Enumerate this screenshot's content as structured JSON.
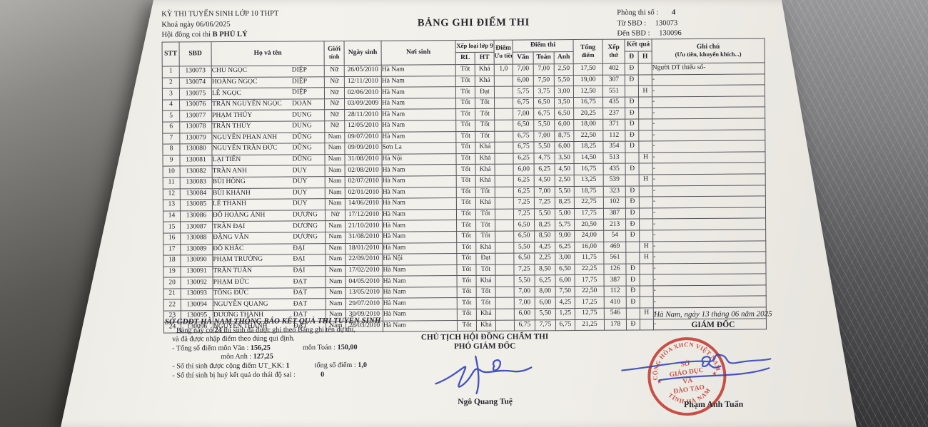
{
  "header": {
    "exam_title": "KỲ THI TUYỂN SINH LỚP 10 THPT",
    "session_label": "Khoá ngày",
    "session_date": "06/06/2025",
    "council_label": "Hội đồng coi thi",
    "council_value": "B PHỦ LÝ",
    "doc_title": "BẢNG GHI ĐIỂM THI",
    "room_label": "Phòng thi số :",
    "room_value": "4",
    "from_label": "Từ SBD :",
    "from_value": "130073",
    "to_label": "Đến SBD :",
    "to_value": "130096"
  },
  "table": {
    "headers": {
      "stt": "STT",
      "sbd": "SBD",
      "name": "Họ và tên",
      "gender_l1": "Giới",
      "gender_l2": "tính",
      "dob": "Ngày sinh",
      "pob": "Nơi sinh",
      "grade9": "Xếp loại lớp 9",
      "rl": "RL",
      "ht": "HT",
      "priority_l1": "Điểm",
      "priority_l2": "Ưu tiên",
      "exam": "Điểm thi",
      "van": "Văn",
      "toan": "Toán",
      "anh": "Anh",
      "total_l1": "Tổng",
      "total_l2": "điểm",
      "rank_l1": "Xếp",
      "rank_l2": "thứ",
      "result": "Kết quả",
      "d": "Đ",
      "h": "H",
      "note_l1": "Ghi chú",
      "note_l2": "(Ưu tiên, khuyến khích...)"
    },
    "rows": [
      [
        "1",
        "130073",
        "CHU NGỌC",
        "DIỆP",
        "Nữ",
        "26/05/2010",
        "Hà Nam",
        "Tốt",
        "Khá",
        "1,0",
        "7,00",
        "7,00",
        "2,50",
        "17,50",
        "402",
        "Đ",
        "",
        "Người DT thiểu số-"
      ],
      [
        "2",
        "130074",
        "HOÀNG NGỌC",
        "DIỆP",
        "Nữ",
        "12/11/2010",
        "Hà Nam",
        "Tốt",
        "Khá",
        "",
        "6,00",
        "7,50",
        "5,50",
        "19,00",
        "307",
        "Đ",
        "",
        "-"
      ],
      [
        "3",
        "130075",
        "LÊ NGỌC",
        "DIỆP",
        "Nữ",
        "02/06/2010",
        "Hà Nam",
        "Tốt",
        "Đạt",
        "",
        "5,75",
        "3,75",
        "3,00",
        "12,50",
        "551",
        "",
        "H",
        "-"
      ],
      [
        "4",
        "130076",
        "TRẦN NGUYỄN NGỌC",
        "DOAN",
        "Nữ",
        "03/09/2009",
        "Hà Nam",
        "Tốt",
        "Tốt",
        "",
        "6,75",
        "6,50",
        "3,50",
        "16,75",
        "435",
        "Đ",
        "",
        "-"
      ],
      [
        "5",
        "130077",
        "PHẠM THÚY",
        "DUNG",
        "Nữ",
        "28/11/2010",
        "Hà Nam",
        "Tốt",
        "Tốt",
        "",
        "7,00",
        "6,75",
        "6,50",
        "20,25",
        "237",
        "Đ",
        "",
        "-"
      ],
      [
        "6",
        "130078",
        "TRẦN THÚY",
        "DUNG",
        "Nữ",
        "12/05/2010",
        "Hà Nam",
        "Tốt",
        "Tốt",
        "",
        "6,50",
        "5,50",
        "6,00",
        "18,00",
        "371",
        "Đ",
        "",
        "-"
      ],
      [
        "7",
        "130079",
        "NGUYỄN PHAN ANH",
        "DŨNG",
        "Nam",
        "09/07/2010",
        "Hà Nam",
        "Tốt",
        "Tốt",
        "",
        "6,75",
        "7,00",
        "8,75",
        "22,50",
        "112",
        "Đ",
        "",
        "-"
      ],
      [
        "8",
        "130080",
        "NGUYỄN TRẦN ĐỨC",
        "DŨNG",
        "Nam",
        "09/09/2010",
        "Sơn La",
        "Tốt",
        "Khá",
        "",
        "6,75",
        "5,50",
        "6,00",
        "18,25",
        "354",
        "Đ",
        "",
        "-"
      ],
      [
        "9",
        "130081",
        "LẠI TIẾN",
        "DŨNG",
        "Nam",
        "31/08/2010",
        "Hà Nội",
        "Tốt",
        "Khá",
        "",
        "6,25",
        "4,75",
        "3,50",
        "14,50",
        "513",
        "",
        "H",
        "-"
      ],
      [
        "10",
        "130082",
        "TRẦN ANH",
        "DUY",
        "Nam",
        "02/08/2010",
        "Hà Nam",
        "Tốt",
        "Khá",
        "",
        "6,00",
        "6,25",
        "4,50",
        "16,75",
        "435",
        "Đ",
        "",
        "-"
      ],
      [
        "11",
        "130083",
        "BÙI HỒNG",
        "DUY",
        "Nam",
        "02/07/2010",
        "Hà Nam",
        "Tốt",
        "Khá",
        "",
        "6,25",
        "4,50",
        "2,50",
        "13,25",
        "539",
        "",
        "H",
        "-"
      ],
      [
        "12",
        "130084",
        "BÙI KHÁNH",
        "DUY",
        "Nam",
        "02/01/2010",
        "Hà Nam",
        "Tốt",
        "Tốt",
        "",
        "6,25",
        "7,00",
        "5,50",
        "18,75",
        "323",
        "Đ",
        "",
        "-"
      ],
      [
        "13",
        "130085",
        "LÊ THÀNH",
        "DUY",
        "Nam",
        "14/06/2010",
        "Hà Nam",
        "Tốt",
        "Khá",
        "",
        "7,25",
        "7,25",
        "8,25",
        "22,75",
        "102",
        "Đ",
        "",
        "-"
      ],
      [
        "14",
        "130086",
        "ĐỖ HOÀNG ÁNH",
        "DƯƠNG",
        "Nữ",
        "17/12/2010",
        "Hà Nam",
        "Tốt",
        "Tốt",
        "",
        "7,25",
        "5,50",
        "5,00",
        "17,75",
        "387",
        "Đ",
        "",
        "-"
      ],
      [
        "15",
        "130087",
        "TRẦN ĐẠI",
        "DƯƠNG",
        "Nam",
        "21/10/2010",
        "Hà Nam",
        "Tốt",
        "Tốt",
        "",
        "6,50",
        "8,25",
        "5,75",
        "20,50",
        "213",
        "Đ",
        "",
        "-"
      ],
      [
        "16",
        "130088",
        "ĐẶNG VĂN",
        "DƯƠNG",
        "Nam",
        "31/08/2010",
        "Hà Nam",
        "Tốt",
        "Tốt",
        "",
        "6,50",
        "8,50",
        "9,00",
        "24,00",
        "54",
        "Đ",
        "",
        "-"
      ],
      [
        "17",
        "130089",
        "ĐỖ KHẮC",
        "ĐẠI",
        "Nam",
        "18/01/2010",
        "Hà Nam",
        "Tốt",
        "Khá",
        "",
        "5,50",
        "4,25",
        "6,25",
        "16,00",
        "469",
        "",
        "H",
        "-"
      ],
      [
        "18",
        "130090",
        "PHẠM TRƯỜNG",
        "ĐẠI",
        "Nam",
        "22/09/2010",
        "Hà Nội",
        "Tốt",
        "Đạt",
        "",
        "6,50",
        "2,25",
        "3,00",
        "11,75",
        "561",
        "",
        "H",
        "-"
      ],
      [
        "19",
        "130091",
        "TRẦN TUẤN",
        "ĐẠI",
        "Nam",
        "17/02/2010",
        "Hà Nam",
        "Tốt",
        "Tốt",
        "",
        "7,25",
        "8,50",
        "6,50",
        "22,25",
        "126",
        "Đ",
        "",
        "-"
      ],
      [
        "20",
        "130092",
        "PHẠM ĐỨC",
        "ĐẠT",
        "Nam",
        "04/05/2010",
        "Hà Nam",
        "Tốt",
        "Khá",
        "",
        "5,50",
        "6,25",
        "6,00",
        "17,75",
        "387",
        "Đ",
        "",
        "-"
      ],
      [
        "21",
        "130093",
        "TỐNG ĐỨC",
        "ĐẠT",
        "Nam",
        "13/05/2010",
        "Hà Nam",
        "Tốt",
        "Tốt",
        "",
        "7,00",
        "8,00",
        "7,50",
        "22,50",
        "112",
        "Đ",
        "",
        "-"
      ],
      [
        "22",
        "130094",
        "NGUYỄN QUANG",
        "ĐẠT",
        "Nam",
        "29/07/2010",
        "Hà Nam",
        "Tốt",
        "Tốt",
        "",
        "7,00",
        "6,00",
        "4,25",
        "17,25",
        "410",
        "Đ",
        "",
        "-"
      ],
      [
        "23",
        "130095",
        "DƯƠNG THÀNH",
        "ĐẠT",
        "Nam",
        "30/09/2010",
        "Hà Nam",
        "Tốt",
        "Khá",
        "",
        "6,00",
        "5,50",
        "1,25",
        "12,75",
        "546",
        "",
        "H",
        "-"
      ],
      [
        "24",
        "130096",
        "NGUYỄN THÀNH",
        "ĐẠT",
        "Nam",
        "28/03/2010",
        "Hà Nam",
        "Tốt",
        "Khá",
        "",
        "6,75",
        "7,75",
        "6,75",
        "21,25",
        "178",
        "Đ",
        "",
        "-"
      ]
    ]
  },
  "footer": {
    "notice_title": "SỞ GDĐT HÀ NAM THÔNG BÁO KẾT QUẢ THI TUYỂN SINH",
    "line1_pre": "Bảng này có",
    "line1_count": "24",
    "line1_post": "thí sinh đã được ghi theo Bảng ghi tên dự thi,",
    "line2": "và đã được nhập điểm theo đúng qui định.",
    "sum_van_label": "- Tổng số điểm môn Văn :",
    "sum_van": "156,25",
    "sum_toan_label": "môn Toán :",
    "sum_toan": "150,00",
    "sum_anh_label": "môn Anh :",
    "sum_anh": "127,25",
    "utkk_label": "- Số thí sinh được cộng điểm UT_KK:",
    "utkk_count": "1",
    "utkk_total_label": "tổng số điểm :",
    "utkk_total": "1,0",
    "cancel_label": "- Số thí sinh bị huỷ kết quả do thái độ sai :",
    "cancel_count": "0"
  },
  "signatures": {
    "center": {
      "title1": "CHỦ TỊCH HỘI ĐỒNG CHẤM THI",
      "title2": "PHÓ GIÁM ĐỐC",
      "name": "Ngô Quang Tuệ"
    },
    "right": {
      "date": "Hà Nam, ngày 13 tháng 06 năm 2025",
      "title": "GIÁM ĐỐC",
      "name": "Phạm Anh Tuấn",
      "stamp": {
        "arc_top": "CỘNG HÒA XHCN VIỆT NAM",
        "arc_bottom": "TỈNH HÀ NAM",
        "line1": "SỞ",
        "line2": "GIÁO DỤC",
        "line3": "VÀ",
        "line4": "ĐÀO TẠO",
        "star_left": "★",
        "star_right": "★"
      }
    }
  },
  "colors": {
    "stamp_red": "#c2392f",
    "ink_blue": "#2b3db5",
    "paper": "#f0eee8"
  }
}
